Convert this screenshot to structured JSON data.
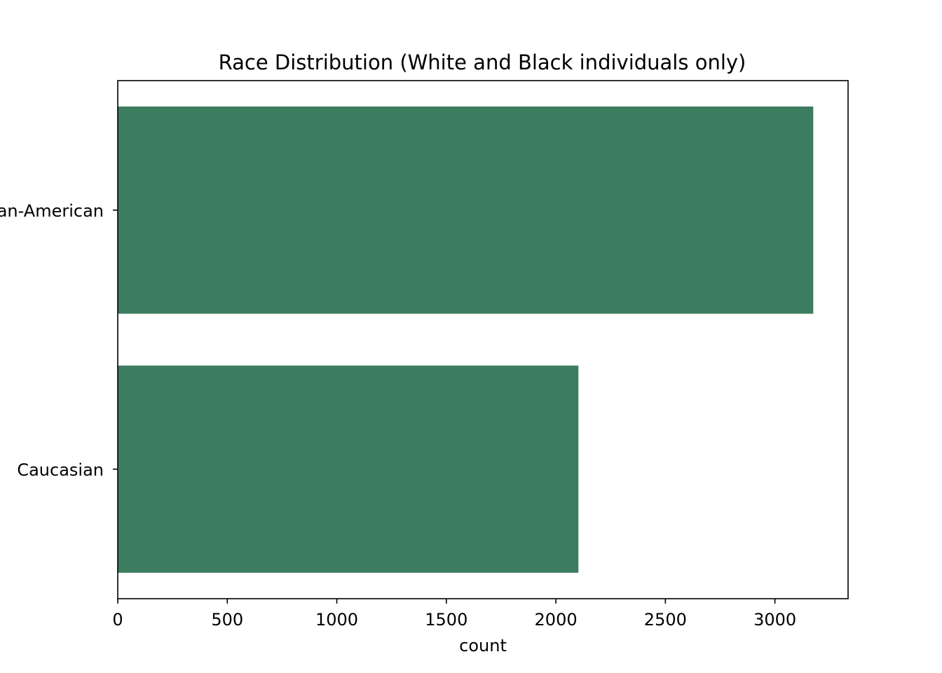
{
  "chart_data": {
    "type": "bar",
    "orientation": "horizontal",
    "title": "Race Distribution (White and Black individuals only)",
    "xlabel": "count",
    "ylabel": "",
    "categories": [
      "African-American",
      "Caucasian"
    ],
    "values": [
      3175,
      2103
    ],
    "xlim": [
      0,
      3334
    ],
    "xticks": [
      0,
      500,
      1000,
      1500,
      2000,
      2500,
      3000
    ],
    "grid": false,
    "legend": "none",
    "bar_color": "#3d7d5f"
  }
}
